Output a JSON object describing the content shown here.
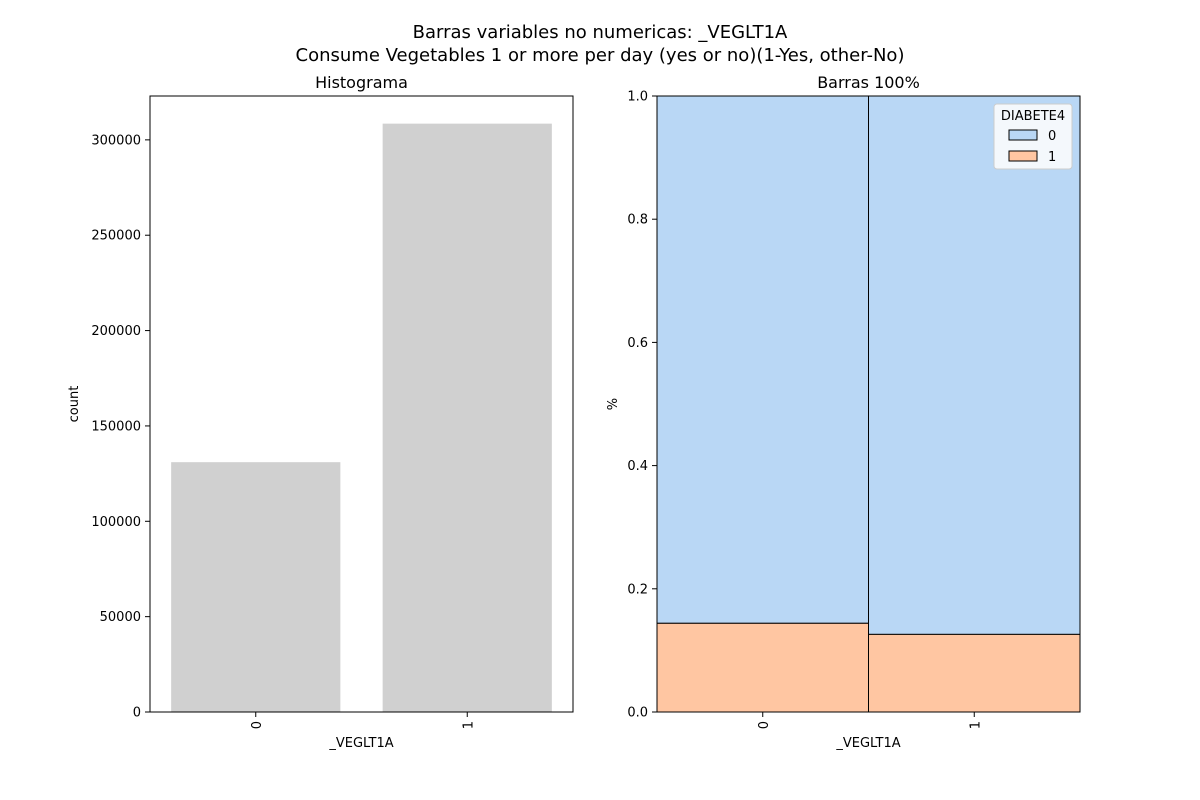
{
  "figure": {
    "suptitle_line1": "Barras variables no numericas: _VEGLT1A",
    "suptitle_line2": "Consume Vegetables 1 or more per day (yes or no)(1-Yes, other-No)"
  },
  "colors": {
    "hist_bar": "#d0d0d0",
    "class_0": "#b9d7f5",
    "class_1": "#ffc6a2",
    "edge": "#000000",
    "legend_bg": "#f4f8fc"
  },
  "chart_data": [
    {
      "type": "bar",
      "title": "Histograma",
      "xlabel": "_VEGLT1A",
      "ylabel": "count",
      "categories": [
        "0",
        "1"
      ],
      "values": [
        131000,
        308500
      ],
      "ylim": [
        0,
        323000
      ],
      "yticks": [
        0,
        50000,
        100000,
        150000,
        200000,
        250000,
        300000
      ],
      "ytick_labels": [
        "0",
        "50000",
        "100000",
        "150000",
        "200000",
        "250000",
        "300000"
      ],
      "grid": false
    },
    {
      "type": "bar",
      "stacked": true,
      "normalized": true,
      "title": "Barras 100%",
      "xlabel": "_VEGLT1A",
      "ylabel": "%",
      "categories": [
        "0",
        "1"
      ],
      "ylim": [
        0,
        1
      ],
      "yticks": [
        0,
        0.2,
        0.4,
        0.6,
        0.8,
        1.0
      ],
      "ytick_labels": [
        "0.0",
        "0.2",
        "0.4",
        "0.6",
        "0.8",
        "1.0"
      ],
      "legend": {
        "title": "DIABETE4",
        "position": "top-right",
        "entries": [
          "0",
          "1"
        ]
      },
      "series": [
        {
          "name": "1",
          "values": [
            0.144,
            0.126
          ]
        },
        {
          "name": "0",
          "values": [
            0.856,
            0.874
          ]
        }
      ],
      "grid": false
    }
  ]
}
